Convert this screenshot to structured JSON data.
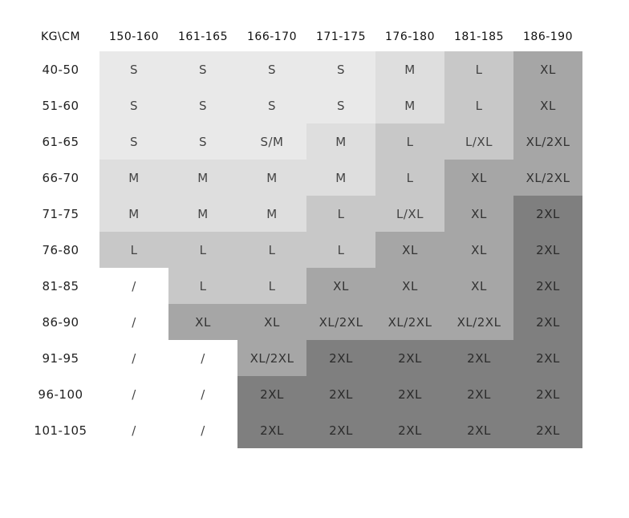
{
  "corner": "KG\\CM",
  "columns": [
    "150-160",
    "161-165",
    "166-170",
    "171-175",
    "176-180",
    "181-185",
    "186-190"
  ],
  "rows": [
    {
      "label": "40-50",
      "cells": [
        "S",
        "S",
        "S",
        "S",
        "M",
        "L",
        "XL"
      ],
      "shades": [
        1,
        1,
        1,
        1,
        2,
        3,
        4
      ]
    },
    {
      "label": "51-60",
      "cells": [
        "S",
        "S",
        "S",
        "S",
        "M",
        "L",
        "XL"
      ],
      "shades": [
        1,
        1,
        1,
        1,
        2,
        3,
        4
      ]
    },
    {
      "label": "61-65",
      "cells": [
        "S",
        "S",
        "S/M",
        "M",
        "L",
        "L/XL",
        "XL/2XL"
      ],
      "shades": [
        1,
        1,
        1,
        2,
        3,
        3,
        4
      ]
    },
    {
      "label": "66-70",
      "cells": [
        "M",
        "M",
        "M",
        "M",
        "L",
        "XL",
        "XL/2XL"
      ],
      "shades": [
        2,
        2,
        2,
        2,
        3,
        4,
        4
      ]
    },
    {
      "label": "71-75",
      "cells": [
        "M",
        "M",
        "M",
        "L",
        "L/XL",
        "XL",
        "2XL"
      ],
      "shades": [
        2,
        2,
        2,
        3,
        3,
        4,
        5
      ]
    },
    {
      "label": "76-80",
      "cells": [
        "L",
        "L",
        "L",
        "L",
        "XL",
        "XL",
        "2XL"
      ],
      "shades": [
        3,
        3,
        3,
        3,
        4,
        4,
        5
      ]
    },
    {
      "label": "81-85",
      "cells": [
        "/",
        "L",
        "L",
        "XL",
        "XL",
        "XL",
        "2XL"
      ],
      "shades": [
        0,
        3,
        3,
        4,
        4,
        4,
        5
      ]
    },
    {
      "label": "86-90",
      "cells": [
        "/",
        "XL",
        "XL",
        "XL/2XL",
        "XL/2XL",
        "XL/2XL",
        "2XL"
      ],
      "shades": [
        0,
        4,
        4,
        4,
        4,
        4,
        5
      ]
    },
    {
      "label": "91-95",
      "cells": [
        "/",
        "/",
        "XL/2XL",
        "2XL",
        "2XL",
        "2XL",
        "2XL"
      ],
      "shades": [
        0,
        0,
        4,
        5,
        5,
        5,
        5
      ]
    },
    {
      "label": "96-100",
      "cells": [
        "/",
        "/",
        "2XL",
        "2XL",
        "2XL",
        "2XL",
        "2XL"
      ],
      "shades": [
        0,
        0,
        5,
        5,
        5,
        5,
        5
      ]
    },
    {
      "label": "101-105",
      "cells": [
        "/",
        "/",
        "2XL",
        "2XL",
        "2XL",
        "2XL",
        "2XL"
      ],
      "shades": [
        0,
        0,
        5,
        5,
        5,
        5,
        5
      ]
    }
  ],
  "shade_colors": {
    "0": "#ffffff",
    "1": "#e9e9e9",
    "2": "#dedede",
    "3": "#c8c8c8",
    "4": "#a6a6a6",
    "5": "#7f7f7f"
  }
}
